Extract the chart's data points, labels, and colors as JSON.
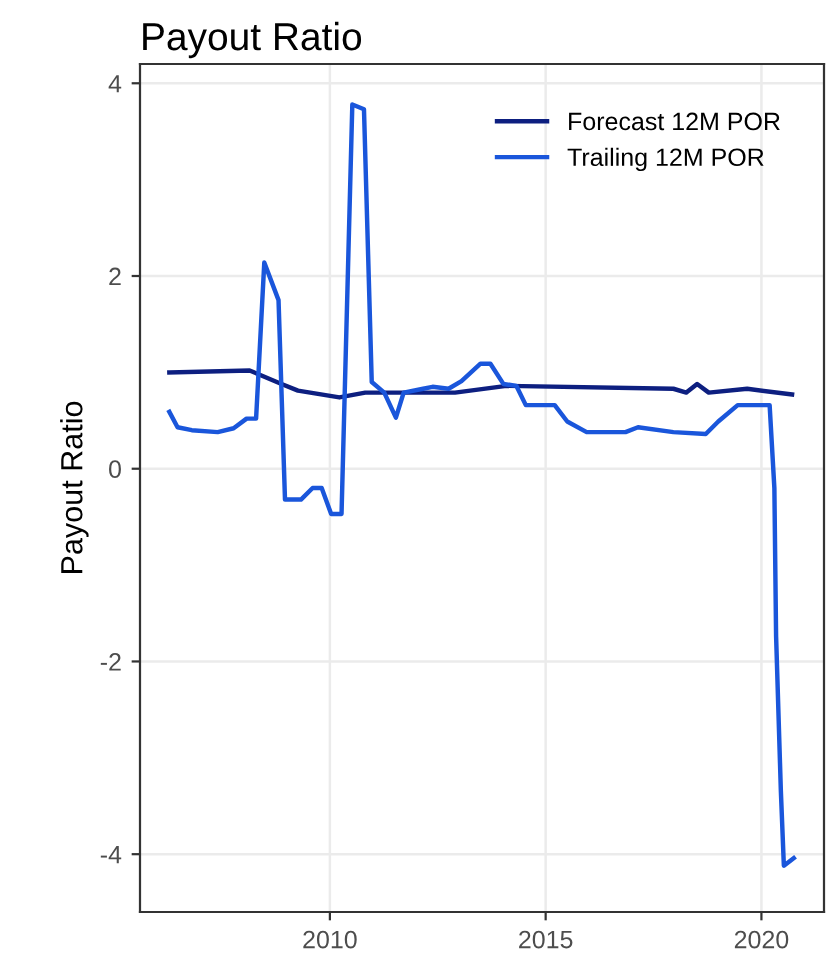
{
  "chart_data": {
    "type": "line",
    "title": "Payout Ratio",
    "ylabel": "Payout Ratio",
    "xlim": [
      2005.6,
      2021.45
    ],
    "xticks": [
      2010,
      2015,
      2020
    ],
    "ylim": [
      -4.6,
      4.2
    ],
    "yticks": [
      -4,
      -2,
      0,
      2,
      4
    ],
    "grid": true,
    "legend": "top right",
    "line_style": "solid",
    "series": [
      {
        "name": "Forecast 12M POR",
        "color": "#0d1f80",
        "x": [
          2006.28,
          2008.14,
          2008.88,
          2009.26,
          2010.22,
          2010.82,
          2012.9,
          2014.09,
          2017.96,
          2018.26,
          2018.51,
          2018.78,
          2019.67,
          2020.71
        ],
        "values": [
          1.0,
          1.02,
          0.88,
          0.81,
          0.74,
          0.79,
          0.79,
          0.86,
          0.83,
          0.79,
          0.88,
          0.79,
          0.83,
          0.77
        ]
      },
      {
        "name": "Trailing 12M POR",
        "color": "#1a56db",
        "x": [
          2006.28,
          2006.47,
          2006.8,
          2007.4,
          2007.77,
          2008.07,
          2008.29,
          2008.48,
          2008.81,
          2008.96,
          2009.33,
          2009.6,
          2009.81,
          2010.03,
          2010.27,
          2010.52,
          2010.79,
          2010.97,
          2011.26,
          2011.53,
          2011.71,
          2012.16,
          2012.38,
          2012.75,
          2013.05,
          2013.49,
          2013.72,
          2014.02,
          2014.32,
          2014.54,
          2015.21,
          2015.5,
          2015.95,
          2016.85,
          2017.14,
          2017.96,
          2018.71,
          2019.0,
          2019.45,
          2020.19,
          2020.3,
          2020.34,
          2020.45,
          2020.52,
          2020.75
        ],
        "values": [
          0.59,
          0.43,
          0.4,
          0.38,
          0.42,
          0.52,
          0.52,
          2.14,
          1.75,
          -0.32,
          -0.32,
          -0.2,
          -0.2,
          -0.47,
          -0.47,
          3.78,
          3.73,
          0.9,
          0.79,
          0.53,
          0.79,
          0.83,
          0.85,
          0.83,
          0.91,
          1.09,
          1.09,
          0.88,
          0.86,
          0.66,
          0.66,
          0.49,
          0.38,
          0.38,
          0.43,
          0.38,
          0.36,
          0.49,
          0.66,
          0.66,
          -0.2,
          -1.74,
          -3.34,
          -4.12,
          -4.04
        ]
      }
    ]
  }
}
